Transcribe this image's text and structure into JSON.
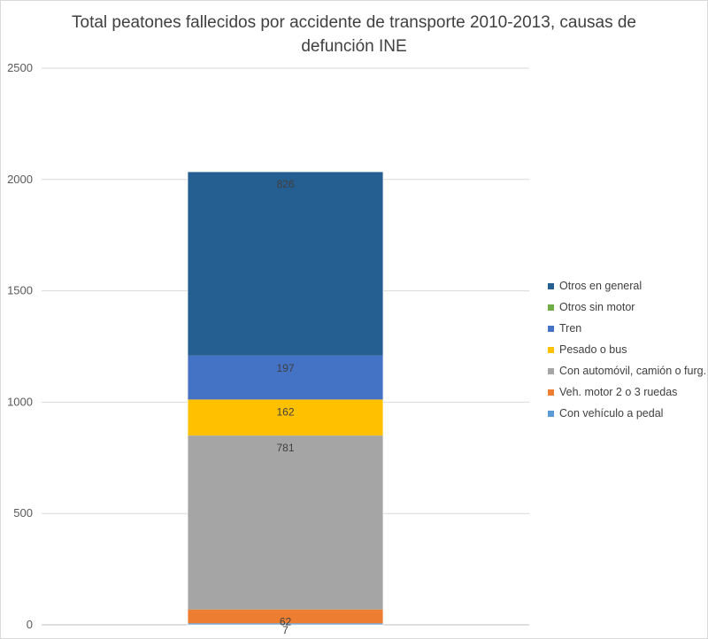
{
  "chart_data": {
    "type": "bar",
    "stacked": true,
    "title": "Total peatones fallecidos por accidente de transporte 2010-2013, causas de defunción INE",
    "xlabel": "",
    "ylabel": "",
    "ylim": [
      0,
      2500
    ],
    "yticks": [
      0,
      500,
      1000,
      1500,
      2000,
      2500
    ],
    "grid": true,
    "legend_position": "right",
    "series": [
      {
        "name": "Con vehículo a pedal",
        "value": 7,
        "color": "#5b9bd5"
      },
      {
        "name": "Veh. motor 2 o 3 ruedas",
        "value": 62,
        "color": "#ed7d31"
      },
      {
        "name": "Con automóvil, camión o furg.",
        "value": 781,
        "color": "#a5a5a5"
      },
      {
        "name": "Pesado o bus",
        "value": 162,
        "color": "#ffc000"
      },
      {
        "name": "Tren",
        "value": 197,
        "color": "#4472c4"
      },
      {
        "name": "Otros sin motor",
        "value": 0,
        "color": "#70ad47"
      },
      {
        "name": "Otros en general",
        "value": 826,
        "color": "#255e91"
      }
    ]
  }
}
